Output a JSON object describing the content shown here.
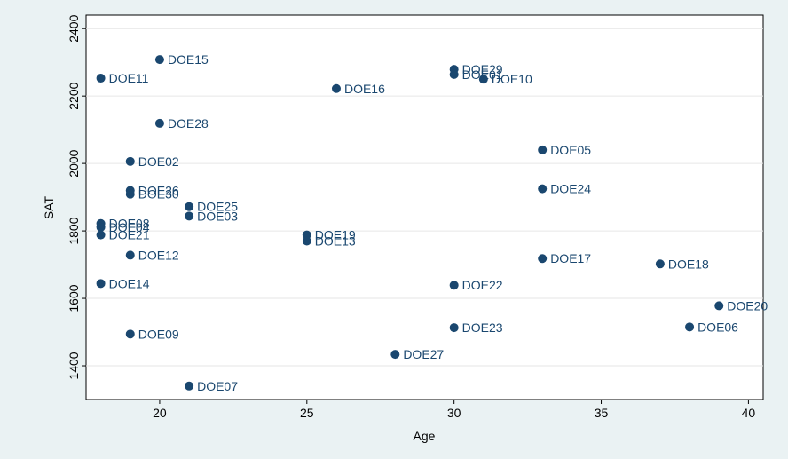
{
  "chart_data": {
    "type": "scatter",
    "xlabel": "Age",
    "ylabel": "SAT",
    "labels": [
      "DOE15",
      "DOE11",
      "DOE16",
      "DOE29",
      "DOE01",
      "DOE10",
      "DOE28",
      "DOE02",
      "DOE05",
      "DOE24",
      "DOE26",
      "DOE30",
      "DOE25",
      "DOE03",
      "DOE08",
      "DOE04",
      "DOE21",
      "DOE19",
      "DOE13",
      "DOE12",
      "DOE17",
      "DOE18",
      "DOE14",
      "DOE22",
      "DOE20",
      "DOE06",
      "DOE23",
      "DOE09",
      "DOE27",
      "DOE07"
    ],
    "x": [
      20,
      18,
      26,
      30,
      30,
      31,
      20,
      19,
      33,
      33,
      19,
      19,
      21,
      21,
      18,
      18,
      18,
      25,
      25,
      19,
      33,
      37,
      18,
      30,
      39,
      38,
      30,
      19,
      28,
      21
    ],
    "values": [
      2308,
      2253,
      2222,
      2279,
      2264,
      2250,
      2119,
      2006,
      2040,
      1925,
      1920,
      1909,
      1872,
      1844,
      1822,
      1811,
      1788,
      1788,
      1770,
      1728,
      1718,
      1702,
      1644,
      1639,
      1578,
      1515,
      1513,
      1494,
      1434,
      1340
    ],
    "color": "#1a476f",
    "xlim": [
      17.5,
      40.5
    ],
    "ylim": [
      1300,
      2440
    ],
    "xticks": [
      20,
      25,
      30,
      35,
      40
    ],
    "yticks": [
      1400,
      1600,
      1800,
      2000,
      2200,
      2400
    ],
    "grid": true
  }
}
